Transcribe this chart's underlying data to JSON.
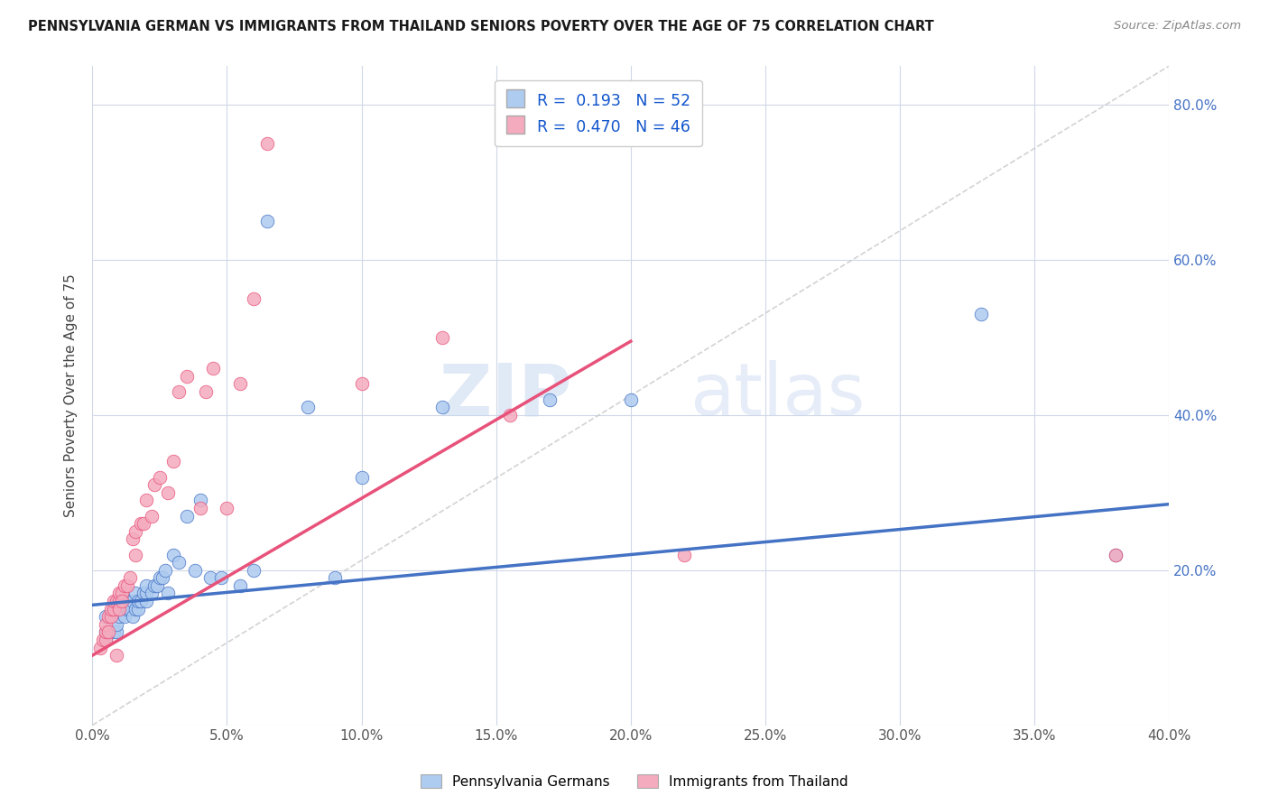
{
  "title": "PENNSYLVANIA GERMAN VS IMMIGRANTS FROM THAILAND SENIORS POVERTY OVER THE AGE OF 75 CORRELATION CHART",
  "source": "Source: ZipAtlas.com",
  "ylabel": "Seniors Poverty Over the Age of 75",
  "xmin": 0.0,
  "xmax": 0.4,
  "ymin": 0.0,
  "ymax": 0.85,
  "xticks": [
    0.0,
    0.05,
    0.1,
    0.15,
    0.2,
    0.25,
    0.3,
    0.35,
    0.4
  ],
  "yticks_right": [
    0.2,
    0.4,
    0.6,
    0.8
  ],
  "blue_R": "0.193",
  "blue_N": "52",
  "pink_R": "0.470",
  "pink_N": "46",
  "blue_color": "#aecbf0",
  "pink_color": "#f4abbe",
  "blue_line_color": "#4472c4",
  "pink_line_color": "#e8527a",
  "ref_line_color": "#c8c8c8",
  "legend_label_blue": "Pennsylvania Germans",
  "legend_label_pink": "Immigrants from Thailand",
  "watermark_zip": "ZIP",
  "watermark_atlas": "atlas",
  "blue_trend_x0": 0.0,
  "blue_trend_y0": 0.155,
  "blue_trend_x1": 0.4,
  "blue_trend_y1": 0.285,
  "pink_trend_x0": 0.0,
  "pink_trend_y0": 0.09,
  "pink_trend_x1": 0.2,
  "pink_trend_y1": 0.495,
  "blue_scatter_x": [
    0.005,
    0.005,
    0.005,
    0.007,
    0.008,
    0.008,
    0.009,
    0.009,
    0.01,
    0.01,
    0.01,
    0.012,
    0.012,
    0.013,
    0.013,
    0.014,
    0.015,
    0.015,
    0.016,
    0.016,
    0.017,
    0.017,
    0.018,
    0.019,
    0.02,
    0.02,
    0.02,
    0.022,
    0.023,
    0.024,
    0.025,
    0.026,
    0.027,
    0.028,
    0.03,
    0.032,
    0.035,
    0.038,
    0.04,
    0.044,
    0.048,
    0.055,
    0.06,
    0.065,
    0.08,
    0.09,
    0.1,
    0.13,
    0.17,
    0.2,
    0.33,
    0.38
  ],
  "blue_scatter_y": [
    0.11,
    0.12,
    0.14,
    0.14,
    0.15,
    0.12,
    0.12,
    0.13,
    0.14,
    0.15,
    0.16,
    0.15,
    0.14,
    0.15,
    0.16,
    0.15,
    0.14,
    0.16,
    0.15,
    0.17,
    0.15,
    0.16,
    0.16,
    0.17,
    0.16,
    0.17,
    0.18,
    0.17,
    0.18,
    0.18,
    0.19,
    0.19,
    0.2,
    0.17,
    0.22,
    0.21,
    0.27,
    0.2,
    0.29,
    0.19,
    0.19,
    0.18,
    0.2,
    0.65,
    0.41,
    0.19,
    0.32,
    0.41,
    0.42,
    0.42,
    0.53,
    0.22
  ],
  "pink_scatter_x": [
    0.003,
    0.004,
    0.005,
    0.005,
    0.005,
    0.006,
    0.006,
    0.007,
    0.007,
    0.008,
    0.008,
    0.009,
    0.009,
    0.01,
    0.01,
    0.01,
    0.011,
    0.011,
    0.012,
    0.013,
    0.014,
    0.015,
    0.016,
    0.016,
    0.018,
    0.019,
    0.02,
    0.022,
    0.023,
    0.025,
    0.028,
    0.03,
    0.032,
    0.035,
    0.04,
    0.042,
    0.045,
    0.05,
    0.055,
    0.06,
    0.065,
    0.1,
    0.13,
    0.155,
    0.22,
    0.38
  ],
  "pink_scatter_y": [
    0.1,
    0.11,
    0.11,
    0.12,
    0.13,
    0.12,
    0.14,
    0.14,
    0.15,
    0.15,
    0.16,
    0.16,
    0.09,
    0.16,
    0.17,
    0.15,
    0.17,
    0.16,
    0.18,
    0.18,
    0.19,
    0.24,
    0.22,
    0.25,
    0.26,
    0.26,
    0.29,
    0.27,
    0.31,
    0.32,
    0.3,
    0.34,
    0.43,
    0.45,
    0.28,
    0.43,
    0.46,
    0.28,
    0.44,
    0.55,
    0.75,
    0.44,
    0.5,
    0.4,
    0.22,
    0.22
  ]
}
